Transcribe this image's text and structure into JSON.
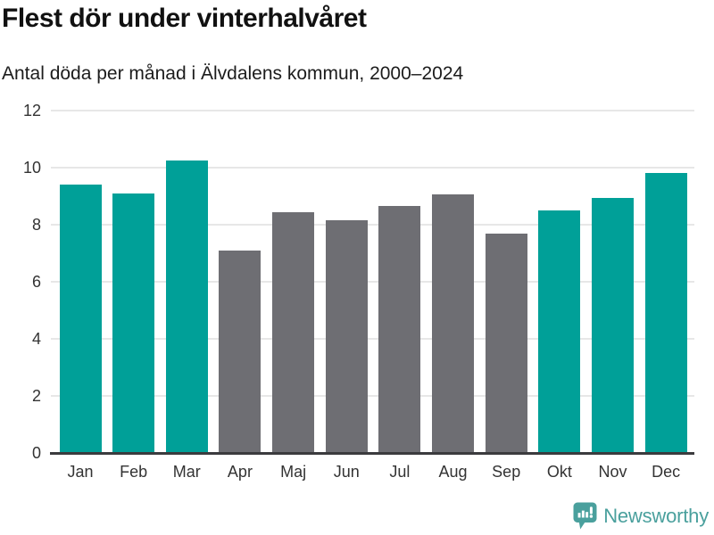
{
  "header": {
    "title": "Flest dör under vinterhalvåret",
    "subtitle": "Antal döda per månad i Älvdalens kommun, 2000–2024"
  },
  "chart_data": {
    "type": "bar",
    "title": "Flest dör under vinterhalvåret",
    "subtitle": "Antal döda per månad i Älvdalens kommun, 2000–2024",
    "categories": [
      "Jan",
      "Feb",
      "Mar",
      "Apr",
      "Maj",
      "Jun",
      "Jul",
      "Aug",
      "Sep",
      "Okt",
      "Nov",
      "Dec"
    ],
    "values": [
      9.4,
      9.1,
      10.25,
      7.1,
      8.45,
      8.15,
      8.65,
      9.05,
      7.7,
      8.5,
      8.95,
      9.8
    ],
    "bar_seasons": [
      "winter",
      "winter",
      "winter",
      "summer",
      "summer",
      "summer",
      "summer",
      "summer",
      "summer",
      "winter",
      "winter",
      "winter"
    ],
    "colors": {
      "winter": "#00a098",
      "summer": "#6e6e73"
    },
    "xlabel": "",
    "ylabel": "",
    "ylim": [
      0,
      12
    ],
    "yticks": [
      0,
      2,
      4,
      6,
      8,
      10,
      12
    ],
    "grid": true,
    "legend_position": "none"
  },
  "footer": {
    "brand": "Newsworthy",
    "brand_color": "#4aa09d",
    "logo_icon": "newsworthy-speech-bubble-chart-icon"
  }
}
